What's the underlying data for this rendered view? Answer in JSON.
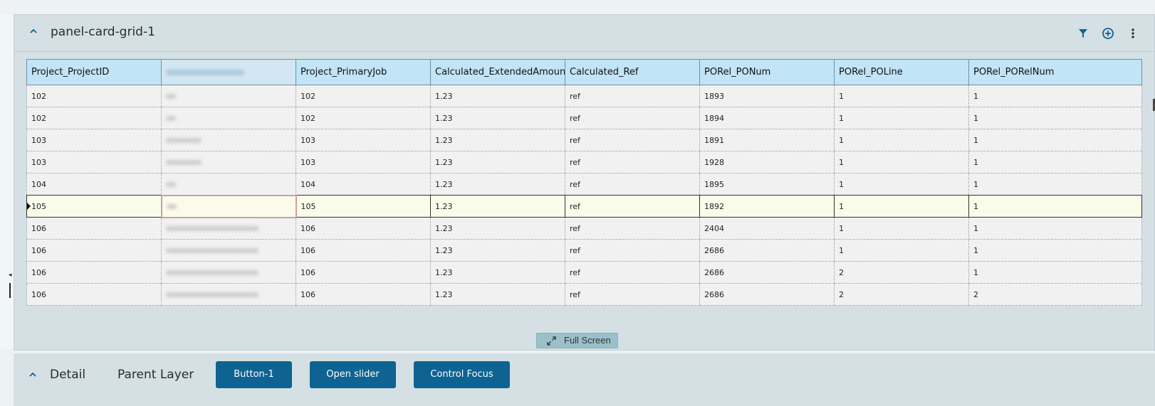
{
  "panel": {
    "title": "panel-card-grid-1",
    "icons": [
      "chevron-up-icon",
      "filter-icon",
      "add-circle-icon",
      "more-vertical-icon"
    ],
    "accent_color": "#0e6392"
  },
  "grid": {
    "columns": [
      "Project_ProjectID",
      "",
      "Project_PrimaryJob",
      "Calculated_ExtendedAmount",
      "Calculated_Ref",
      "PORel_PONum",
      "PORel_POLine",
      "PORel_PORelNum"
    ],
    "rows": [
      [
        "102",
        "",
        "102",
        "1.23",
        "ref",
        "1893",
        "1",
        "1"
      ],
      [
        "102",
        "",
        "102",
        "1.23",
        "ref",
        "1894",
        "1",
        "1"
      ],
      [
        "103",
        "",
        "103",
        "1.23",
        "ref",
        "1891",
        "1",
        "1"
      ],
      [
        "103",
        "",
        "103",
        "1.23",
        "ref",
        "1928",
        "1",
        "1"
      ],
      [
        "104",
        "",
        "104",
        "1.23",
        "ref",
        "1895",
        "1",
        "1"
      ],
      [
        "105",
        "",
        "105",
        "1.23",
        "ref",
        "1892",
        "1",
        "1"
      ],
      [
        "106",
        "",
        "106",
        "1.23",
        "ref",
        "2404",
        "1",
        "1"
      ],
      [
        "106",
        "",
        "106",
        "1.23",
        "ref",
        "2686",
        "1",
        "1"
      ],
      [
        "106",
        "",
        "106",
        "1.23",
        "ref",
        "2686",
        "2",
        "1"
      ],
      [
        "106",
        "",
        "106",
        "1.23",
        "ref",
        "2686",
        "2",
        "2"
      ]
    ]
  },
  "fullscreen": {
    "label": "Full Screen"
  },
  "detail": {
    "title": "Detail",
    "parent_layer": "Parent Layer",
    "buttons": [
      "Button-1",
      "Open slider",
      "Control Focus"
    ]
  }
}
